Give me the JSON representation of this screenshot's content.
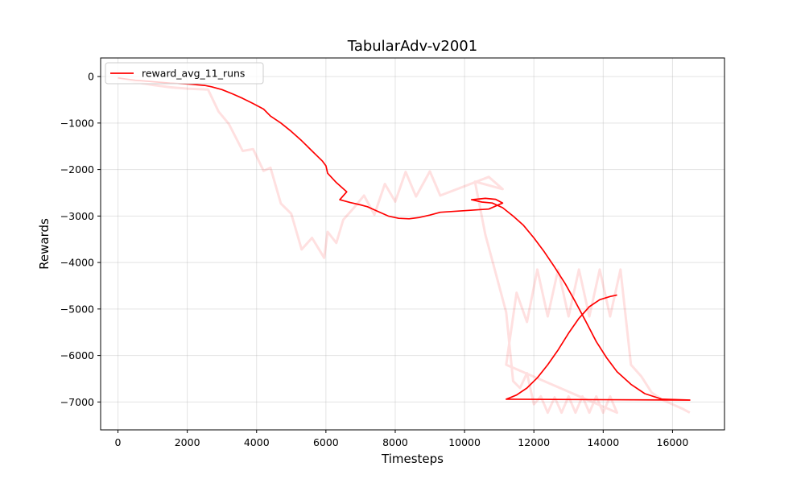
{
  "chart_data": {
    "type": "line",
    "title": "TabularAdv-v2001",
    "xlabel": "Timesteps",
    "ylabel": "Rewards",
    "xlim": [
      -500,
      17500
    ],
    "ylim": [
      -7600,
      400
    ],
    "xticks": [
      0,
      2000,
      4000,
      6000,
      8000,
      10000,
      12000,
      14000,
      16000
    ],
    "xtick_labels": [
      "0",
      "2000",
      "4000",
      "6000",
      "8000",
      "10000",
      "12000",
      "14000",
      "16000"
    ],
    "yticks": [
      0,
      -1000,
      -2000,
      -3000,
      -4000,
      -5000,
      -6000,
      -7000
    ],
    "ytick_labels": [
      "0",
      "−1000",
      "−2000",
      "−3000",
      "−4000",
      "−5000",
      "−6000",
      "−7000"
    ],
    "grid": true,
    "legend_position": "top-left",
    "colors": {
      "series": "#ff0000",
      "raw": "#ff0000"
    },
    "series": [
      {
        "name": "reward_avg_11_runs",
        "role": "smoothed",
        "x": [
          0,
          500,
          1000,
          1500,
          2000,
          2500,
          2700,
          3000,
          3300,
          3600,
          3900,
          4200,
          4400,
          4700,
          5000,
          5300,
          5600,
          5900,
          6000,
          6050,
          6300,
          6600,
          6400,
          6700,
          7000,
          7200,
          7500,
          7800,
          8100,
          8400,
          8700,
          9000,
          9300,
          10700,
          11100,
          10900,
          10600,
          10200,
          10500,
          10800,
          11100,
          11400,
          11700,
          12000,
          12300,
          12600,
          12900,
          13200,
          13500,
          13800,
          14100,
          14400,
          14800,
          15200,
          15700,
          16500,
          11200,
          11500,
          11800,
          12100,
          12400,
          12700,
          13000,
          13300,
          13600,
          13900,
          14200,
          14400
        ],
        "y": [
          -30,
          -80,
          -110,
          -140,
          -160,
          -190,
          -220,
          -280,
          -370,
          -470,
          -580,
          -700,
          -850,
          -1000,
          -1180,
          -1380,
          -1600,
          -1820,
          -1920,
          -2080,
          -2280,
          -2480,
          -2650,
          -2710,
          -2760,
          -2800,
          -2900,
          -3000,
          -3050,
          -3060,
          -3030,
          -2980,
          -2920,
          -2850,
          -2720,
          -2640,
          -2620,
          -2650,
          -2700,
          -2720,
          -2820,
          -3000,
          -3200,
          -3470,
          -3770,
          -4100,
          -4450,
          -4850,
          -5270,
          -5700,
          -6050,
          -6350,
          -6620,
          -6820,
          -6940,
          -6960,
          -6940,
          -6850,
          -6700,
          -6480,
          -6200,
          -5880,
          -5520,
          -5200,
          -4950,
          -4800,
          -4730,
          -4700
        ]
      },
      {
        "name": "",
        "role": "raw",
        "x": [
          0,
          500,
          1000,
          1500,
          2000,
          2600,
          2900,
          3200,
          3600,
          3900,
          4200,
          4400,
          4700,
          5000,
          5300,
          5600,
          5950,
          6050,
          6300,
          6500,
          6800,
          7100,
          7400,
          7700,
          8000,
          8300,
          8600,
          9000,
          9300,
          10700,
          11100,
          10300,
          10600,
          10900,
          11200,
          11400,
          11600,
          11800,
          12000,
          12200,
          12400,
          12600,
          12800,
          13000,
          13200,
          13400,
          13600,
          13800,
          14000,
          14200,
          14400,
          11200,
          11500,
          11800,
          12100,
          12400,
          12700,
          13000,
          13300,
          13600,
          13900,
          14200,
          14500,
          14800,
          15100,
          15400,
          15700,
          16000,
          16300,
          16500
        ],
        "y": [
          -30,
          -120,
          -180,
          -230,
          -260,
          -280,
          -750,
          -1020,
          -1600,
          -1560,
          -2030,
          -1960,
          -2730,
          -2950,
          -3720,
          -3470,
          -3900,
          -3340,
          -3580,
          -3080,
          -2830,
          -2560,
          -2970,
          -2310,
          -2690,
          -2050,
          -2580,
          -2040,
          -2560,
          -2160,
          -2420,
          -2260,
          -3400,
          -4230,
          -5070,
          -6550,
          -6700,
          -6380,
          -7050,
          -6880,
          -7230,
          -6900,
          -7230,
          -6880,
          -7230,
          -6880,
          -7230,
          -6880,
          -7230,
          -6880,
          -7230,
          -6200,
          -4650,
          -5280,
          -4150,
          -5160,
          -4150,
          -5160,
          -4150,
          -5160,
          -4150,
          -5160,
          -4150,
          -6200,
          -6450,
          -6800,
          -6950,
          -7050,
          -7150,
          -7230
        ]
      }
    ]
  }
}
